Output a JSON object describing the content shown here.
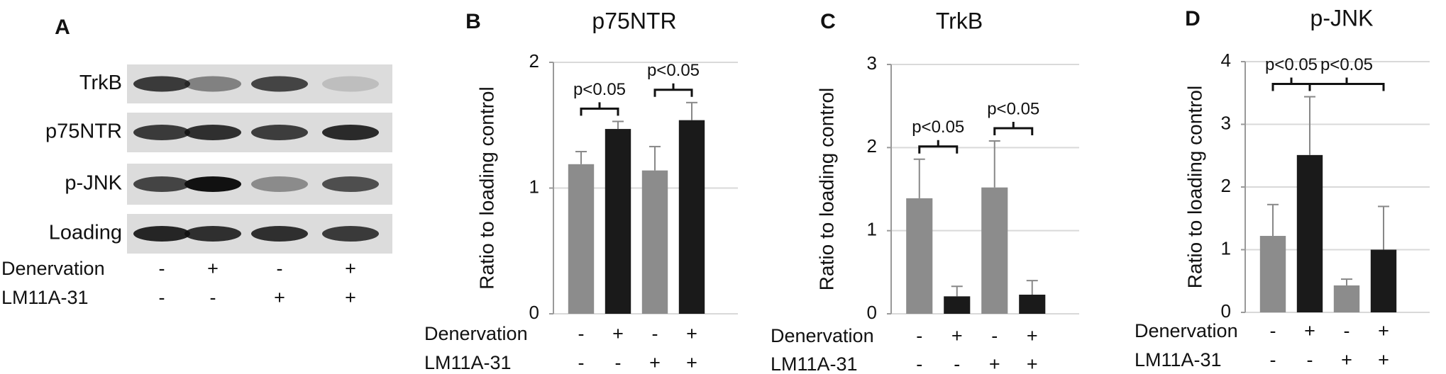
{
  "panel_a": {
    "label": "A",
    "rows": [
      "TrkB",
      "p75NTR",
      "p-JNK",
      "Loading"
    ],
    "conditions": [
      {
        "name": "Denervation",
        "signs": [
          "-",
          "+",
          "-",
          "+"
        ]
      },
      {
        "name": "LM11A-31",
        "signs": [
          "-",
          "-",
          "+",
          "+"
        ]
      }
    ]
  },
  "chart_data": [
    {
      "type": "bar",
      "panel": "B",
      "title": "p75NTR",
      "y_label": "Ratio to loading control",
      "values": [
        1.19,
        1.47,
        1.14,
        1.54
      ],
      "errors": [
        0.1,
        0.06,
        0.19,
        0.14
      ],
      "colors": [
        "#8c8c8c",
        "#1a1a1a",
        "#8c8c8c",
        "#1a1a1a"
      ],
      "ylim": [
        0,
        2
      ],
      "yticks": [
        0,
        1,
        2
      ],
      "grid": true,
      "annotations": [
        {
          "text": "p<0.05",
          "between": [
            0,
            1
          ]
        },
        {
          "text": "p<0.05",
          "between": [
            2,
            3
          ]
        }
      ],
      "conditions": [
        {
          "name": "Denervation",
          "signs": [
            "-",
            "+",
            "-",
            "+"
          ]
        },
        {
          "name": "LM11A-31",
          "signs": [
            "-",
            "-",
            "+",
            "+"
          ]
        }
      ]
    },
    {
      "type": "bar",
      "panel": "C",
      "title": "TrkB",
      "y_label": "Ratio to loading control",
      "values": [
        1.39,
        0.21,
        1.52,
        0.23
      ],
      "errors": [
        0.47,
        0.12,
        0.56,
        0.17
      ],
      "colors": [
        "#8c8c8c",
        "#1a1a1a",
        "#8c8c8c",
        "#1a1a1a"
      ],
      "ylim": [
        0,
        3
      ],
      "yticks": [
        0,
        1,
        2,
        3
      ],
      "grid": true,
      "annotations": [
        {
          "text": "p<0.05",
          "between": [
            0,
            1
          ]
        },
        {
          "text": "p<0.05",
          "between": [
            2,
            3
          ]
        }
      ],
      "conditions": [
        {
          "name": "Denervation",
          "signs": [
            "-",
            "+",
            "-",
            "+"
          ]
        },
        {
          "name": "LM11A-31",
          "signs": [
            "-",
            "-",
            "+",
            "+"
          ]
        }
      ]
    },
    {
      "type": "bar",
      "panel": "D",
      "title": "p-JNK",
      "y_label": "Ratio to loading control",
      "values": [
        1.22,
        2.51,
        0.43,
        1.0
      ],
      "errors": [
        0.5,
        0.93,
        0.1,
        0.69
      ],
      "colors": [
        "#8c8c8c",
        "#1a1a1a",
        "#8c8c8c",
        "#1a1a1a"
      ],
      "ylim": [
        0,
        4
      ],
      "yticks": [
        0,
        1,
        2,
        3,
        4
      ],
      "grid": true,
      "annotations": [
        {
          "text": "p<0.05",
          "between": [
            0,
            1
          ]
        },
        {
          "text": "p<0.05",
          "between": [
            1,
            3
          ]
        }
      ],
      "conditions": [
        {
          "name": "Denervation",
          "signs": [
            "-",
            "+",
            "-",
            "+"
          ]
        },
        {
          "name": "LM11A-31",
          "signs": [
            "-",
            "-",
            "+",
            "+"
          ]
        }
      ]
    }
  ]
}
